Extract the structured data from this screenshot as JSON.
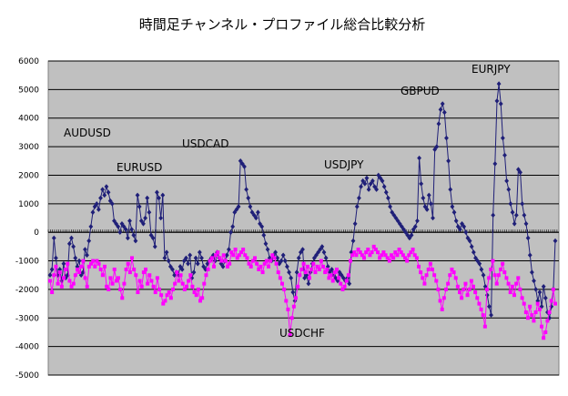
{
  "chart_data": {
    "type": "line",
    "title": "時間足チャンネル・プロファイル総合比較分析",
    "ylim": [
      -5000,
      6000
    ],
    "ytick_step": 1000,
    "grid": "horizontal",
    "legend": "none",
    "annotations": [
      "AUDUSD",
      "EURUSD",
      "USDCAD",
      "USDJPY",
      "GBPUD",
      "EURJPY",
      "USDCHF"
    ],
    "series": [
      {
        "color": "#1f1f78",
        "marker": "diamond",
        "values": [
          -1500,
          -1300,
          -200,
          -900,
          -1500,
          -1300,
          -1700,
          -1100,
          -1600,
          -1500,
          -400,
          -200,
          -500,
          -900,
          -1200,
          -1000,
          -1500,
          -1400,
          -600,
          -800,
          -300,
          200,
          700,
          900,
          1000,
          800,
          1200,
          1500,
          1300,
          1600,
          1400,
          1100,
          1000,
          400,
          300,
          200,
          0,
          300,
          200,
          100,
          -200,
          400,
          100,
          -100,
          -300,
          1300,
          900,
          400,
          300,
          500,
          1200,
          700,
          -100,
          -200,
          -500,
          1400,
          1200,
          500,
          1300,
          -900,
          -700,
          -1000,
          -1200,
          -1300,
          -1500,
          -1400,
          -1500,
          -1200,
          -1300,
          -1000,
          -900,
          -1100,
          -800,
          -1600,
          -1400,
          -900,
          -1100,
          -700,
          -900,
          -1200,
          -1300,
          -1100,
          -1000,
          -900,
          -800,
          -1000,
          -700,
          -900,
          -1100,
          -1200,
          -1000,
          -800,
          -600,
          0,
          200,
          700,
          800,
          900,
          2500,
          2400,
          2300,
          1500,
          1200,
          900,
          700,
          600,
          500,
          700,
          300,
          200,
          -100,
          -400,
          -600,
          -900,
          -1000,
          -800,
          -700,
          -900,
          -1100,
          -1000,
          -800,
          -1000,
          -1200,
          -1400,
          -1600,
          -2100,
          -2400,
          -1400,
          -900,
          -700,
          -600,
          -1600,
          -1500,
          -1800,
          -1400,
          -1100,
          -900,
          -800,
          -700,
          -600,
          -500,
          -700,
          -900,
          -1200,
          -1400,
          -1300,
          -1500,
          -1600,
          -1700,
          -1400,
          -1500,
          -1600,
          -1700,
          -1600,
          -1800,
          -700,
          -300,
          300,
          900,
          1200,
          1600,
          1800,
          1700,
          1900,
          1500,
          1700,
          1800,
          1600,
          1500,
          2000,
          1900,
          1800,
          1600,
          1400,
          1200,
          900,
          700,
          600,
          500,
          400,
          300,
          200,
          100,
          0,
          -100,
          -200,
          -100,
          100,
          200,
          400,
          2600,
          1700,
          1200,
          900,
          800,
          1300,
          1000,
          500,
          2900,
          3000,
          3800,
          4300,
          4500,
          4200,
          3300,
          2500,
          1500,
          900,
          700,
          400,
          200,
          100,
          300,
          200,
          0,
          -200,
          -300,
          -500,
          -700,
          -900,
          -1000,
          -1100,
          -1300,
          -1500,
          -1900,
          -2200,
          -2600,
          -2900,
          600,
          2400,
          4600,
          5200,
          4500,
          3300,
          2700,
          1800,
          1500,
          1000,
          700,
          300,
          600,
          2200,
          2100,
          1000,
          600,
          300,
          -200,
          -800,
          -1400,
          -1700,
          -2000,
          -2400,
          -2100,
          -2600,
          -1900,
          -2300,
          -2800,
          -3000,
          -2600,
          -2000,
          -300
        ]
      },
      {
        "color": "#ff00ff",
        "marker": "square",
        "values": [
          -1700,
          -2100,
          -1500,
          -1200,
          -1800,
          -1400,
          -1900,
          -1600,
          -1300,
          -1100,
          -1700,
          -1900,
          -1800,
          -1500,
          -1300,
          -1400,
          -1200,
          -1000,
          -1600,
          -1900,
          -1200,
          -1100,
          -1000,
          -1200,
          -1000,
          -1100,
          -1300,
          -1500,
          -1200,
          -1900,
          -2000,
          -1600,
          -1800,
          -1300,
          -1700,
          -1600,
          -2000,
          -2300,
          -1800,
          -1300,
          -1100,
          -1400,
          -900,
          -1300,
          -1500,
          -2100,
          -1700,
          -1900,
          -1400,
          -1300,
          -1800,
          -1500,
          -1700,
          -1900,
          -2100,
          -1600,
          -2000,
          -2200,
          -2500,
          -2400,
          -2200,
          -2100,
          -2300,
          -2000,
          -1800,
          -1400,
          -1700,
          -1500,
          -1800,
          -2000,
          -1900,
          -1700,
          -1500,
          -1900,
          -2100,
          -2200,
          -2000,
          -2400,
          -2300,
          -1800,
          -1500,
          -1300,
          -1000,
          -900,
          -1200,
          -800,
          -700,
          -900,
          -1000,
          -800,
          -1000,
          -1200,
          -1100,
          -700,
          -800,
          -600,
          -900,
          -800,
          -700,
          -600,
          -800,
          -900,
          -1100,
          -1200,
          -1000,
          -900,
          -1100,
          -1300,
          -1200,
          -1400,
          -1100,
          -1000,
          -1200,
          -1000,
          -800,
          -900,
          -1100,
          -1400,
          -1600,
          -1800,
          -2000,
          -2400,
          -2700,
          -3600,
          -3000,
          -2600,
          -2300,
          -1900,
          -1500,
          -1300,
          -1100,
          -1400,
          -1200,
          -1600,
          -1300,
          -1100,
          -1400,
          -1200,
          -1300,
          -1000,
          -1200,
          -1400,
          -1300,
          -1600,
          -1500,
          -1700,
          -1400,
          -1300,
          -1600,
          -1800,
          -2000,
          -1900,
          -1700,
          -1500,
          -1000,
          -800,
          -700,
          -800,
          -600,
          -700,
          -800,
          -900,
          -700,
          -600,
          -800,
          -700,
          -500,
          -600,
          -700,
          -900,
          -800,
          -700,
          -800,
          -900,
          -1000,
          -800,
          -900,
          -700,
          -800,
          -600,
          -700,
          -800,
          -900,
          -1000,
          -800,
          -700,
          -600,
          -800,
          -900,
          -1200,
          -1400,
          -1600,
          -1800,
          -1500,
          -1300,
          -1100,
          -1300,
          -1500,
          -1700,
          -2000,
          -2400,
          -2700,
          -2300,
          -2000,
          -1800,
          -1500,
          -1300,
          -1400,
          -1600,
          -1900,
          -2100,
          -2300,
          -2000,
          -1800,
          -2200,
          -2000,
          -1700,
          -1900,
          -2100,
          -2300,
          -2500,
          -2700,
          -2900,
          -3300,
          -2000,
          -1600,
          -1300,
          -1000,
          -1500,
          -1800,
          -1500,
          -1300,
          -1100,
          -1400,
          -1600,
          -1800,
          -2100,
          -1900,
          -2200,
          -1800,
          -1600,
          -2000,
          -2300,
          -2500,
          -2800,
          -3000,
          -2600,
          -2900,
          -3100,
          -2800,
          -2500,
          -2700,
          -3300,
          -3700,
          -3500,
          -3100,
          -2800,
          -2400,
          -2000,
          -2500
        ]
      }
    ]
  }
}
